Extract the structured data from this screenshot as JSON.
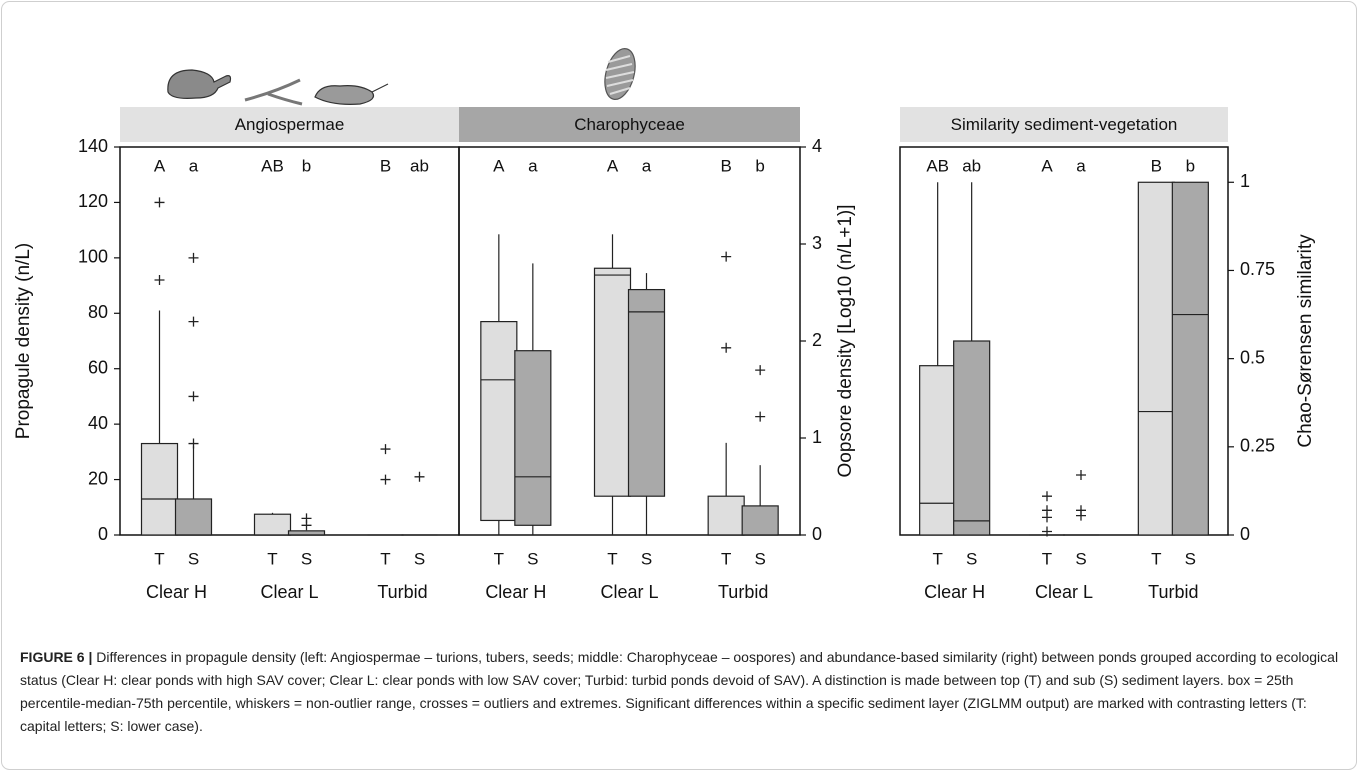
{
  "chart_data": [
    {
      "type": "box",
      "title": "Angiospermae",
      "header_color": "#e2e2e2",
      "ylabel": "Propagule density (n/L)",
      "yaxis": "left",
      "ylim": [
        0,
        140
      ],
      "yticks": [
        0,
        20,
        40,
        60,
        80,
        100,
        120,
        140
      ],
      "groups": [
        "Clear H",
        "Clear L",
        "Turbid"
      ],
      "series": [
        {
          "name": "T",
          "color": "#dedede",
          "letters": [
            "A",
            "AB",
            "B"
          ],
          "boxes": [
            {
              "whislo": 0,
              "q1": 0,
              "med": 13,
              "q3": 33,
              "whishi": 81,
              "fliers": [
                120,
                92
              ]
            },
            {
              "whislo": 0,
              "q1": 0,
              "med": 0,
              "q3": 7.5,
              "whishi": 8,
              "fliers": []
            },
            {
              "whislo": 0,
              "q1": 0,
              "med": 0,
              "q3": 0,
              "whishi": 0,
              "fliers": [
                31,
                20
              ]
            }
          ]
        },
        {
          "name": "S",
          "color": "#a9a9a9",
          "letters": [
            "a",
            "b",
            "ab"
          ],
          "boxes": [
            {
              "whislo": 0,
              "q1": 0,
              "med": 0,
              "q3": 13,
              "whishi": 32,
              "fliers": [
                100,
                77,
                50,
                33
              ]
            },
            {
              "whislo": 0,
              "q1": 0,
              "med": 0,
              "q3": 1.5,
              "whishi": 1.5,
              "fliers": [
                6,
                3.5
              ]
            },
            {
              "whislo": 0,
              "q1": 0,
              "med": 0,
              "q3": 0,
              "whishi": 0,
              "fliers": [
                21
              ]
            }
          ]
        }
      ]
    },
    {
      "type": "box",
      "title": "Charophyceae",
      "header_color": "#a6a6a6",
      "ylabel": "Oopsore density [Log10 (n/L+1)]",
      "yaxis": "right",
      "ylim": [
        0,
        4
      ],
      "yticks": [
        0,
        1,
        2,
        3,
        4
      ],
      "groups": [
        "Clear H",
        "Clear L",
        "Turbid"
      ],
      "series": [
        {
          "name": "T",
          "color": "#dedede",
          "letters": [
            "A",
            "A",
            "B"
          ],
          "boxes": [
            {
              "whislo": 0,
              "q1": 0.15,
              "med": 1.6,
              "q3": 2.2,
              "whishi": 3.1,
              "fliers": []
            },
            {
              "whislo": 0,
              "q1": 0.4,
              "med": 2.68,
              "q3": 2.75,
              "whishi": 3.1,
              "fliers": []
            },
            {
              "whislo": 0,
              "q1": 0,
              "med": 0,
              "q3": 0.4,
              "whishi": 0.95,
              "fliers": [
                2.87,
                1.93
              ]
            }
          ]
        },
        {
          "name": "S",
          "color": "#a9a9a9",
          "letters": [
            "a",
            "a",
            "b"
          ],
          "boxes": [
            {
              "whislo": 0,
              "q1": 0.1,
              "med": 0.6,
              "q3": 1.9,
              "whishi": 2.8,
              "fliers": []
            },
            {
              "whislo": 0,
              "q1": 0.4,
              "med": 2.3,
              "q3": 2.53,
              "whishi": 2.7,
              "fliers": []
            },
            {
              "whislo": 0,
              "q1": 0,
              "med": 0,
              "q3": 0.3,
              "whishi": 0.72,
              "fliers": [
                1.7,
                1.22
              ]
            }
          ]
        }
      ]
    },
    {
      "type": "box",
      "title": "Similarity sediment-vegetation",
      "header_color": "#e2e2e2",
      "ylabel": "Chao-Sørensen similarity",
      "yaxis": "right",
      "ylim": [
        0,
        1.1
      ],
      "yticks": [
        0,
        0.25,
        0.5,
        0.75,
        1
      ],
      "groups": [
        "Clear H",
        "Clear L",
        "Turbid"
      ],
      "series": [
        {
          "name": "T",
          "color": "#dedede",
          "letters": [
            "AB",
            "A",
            "B"
          ],
          "boxes": [
            {
              "whislo": 0,
              "q1": 0,
              "med": 0.09,
              "q3": 0.48,
              "whishi": 1,
              "fliers": []
            },
            {
              "whislo": 0,
              "q1": 0,
              "med": 0,
              "q3": 0,
              "whishi": 0,
              "fliers": [
                0.11,
                0.07,
                0.05,
                0.01
              ]
            },
            {
              "whislo": 0,
              "q1": 0,
              "med": 0.35,
              "q3": 1,
              "whishi": 1,
              "fliers": []
            }
          ]
        },
        {
          "name": "S",
          "color": "#a9a9a9",
          "letters": [
            "ab",
            "a",
            "b"
          ],
          "boxes": [
            {
              "whislo": 0,
              "q1": 0,
              "med": 0.04,
              "q3": 0.55,
              "whishi": 1,
              "fliers": []
            },
            {
              "whislo": 0,
              "q1": 0,
              "med": 0,
              "q3": 0,
              "whishi": 0,
              "fliers": [
                0.17,
                0.07,
                0.055
              ]
            },
            {
              "whislo": 0,
              "q1": 0,
              "med": 0.625,
              "q3": 1,
              "whishi": 1,
              "fliers": []
            }
          ]
        }
      ]
    }
  ],
  "caption": {
    "label": "FIGURE 6 |",
    "text": "Differences in propagule density (left: Angiospermae – turions, tubers, seeds; middle: Charophyceae – oospores) and abundance-based similarity (right) between ponds grouped according to ecological status (Clear H: clear ponds with high SAV cover; Clear L: clear ponds with low SAV cover; Turbid: turbid ponds devoid of SAV). A distinction is made between top (T) and sub (S) sediment layers. box = 25th percentile-median-75th percentile, whiskers = non-outlier range, crosses = outliers and extremes. Significant differences within a specific sediment layer (ZIGLMM output) are marked with contrasting letters (T: capital letters; S: lower case)."
  }
}
